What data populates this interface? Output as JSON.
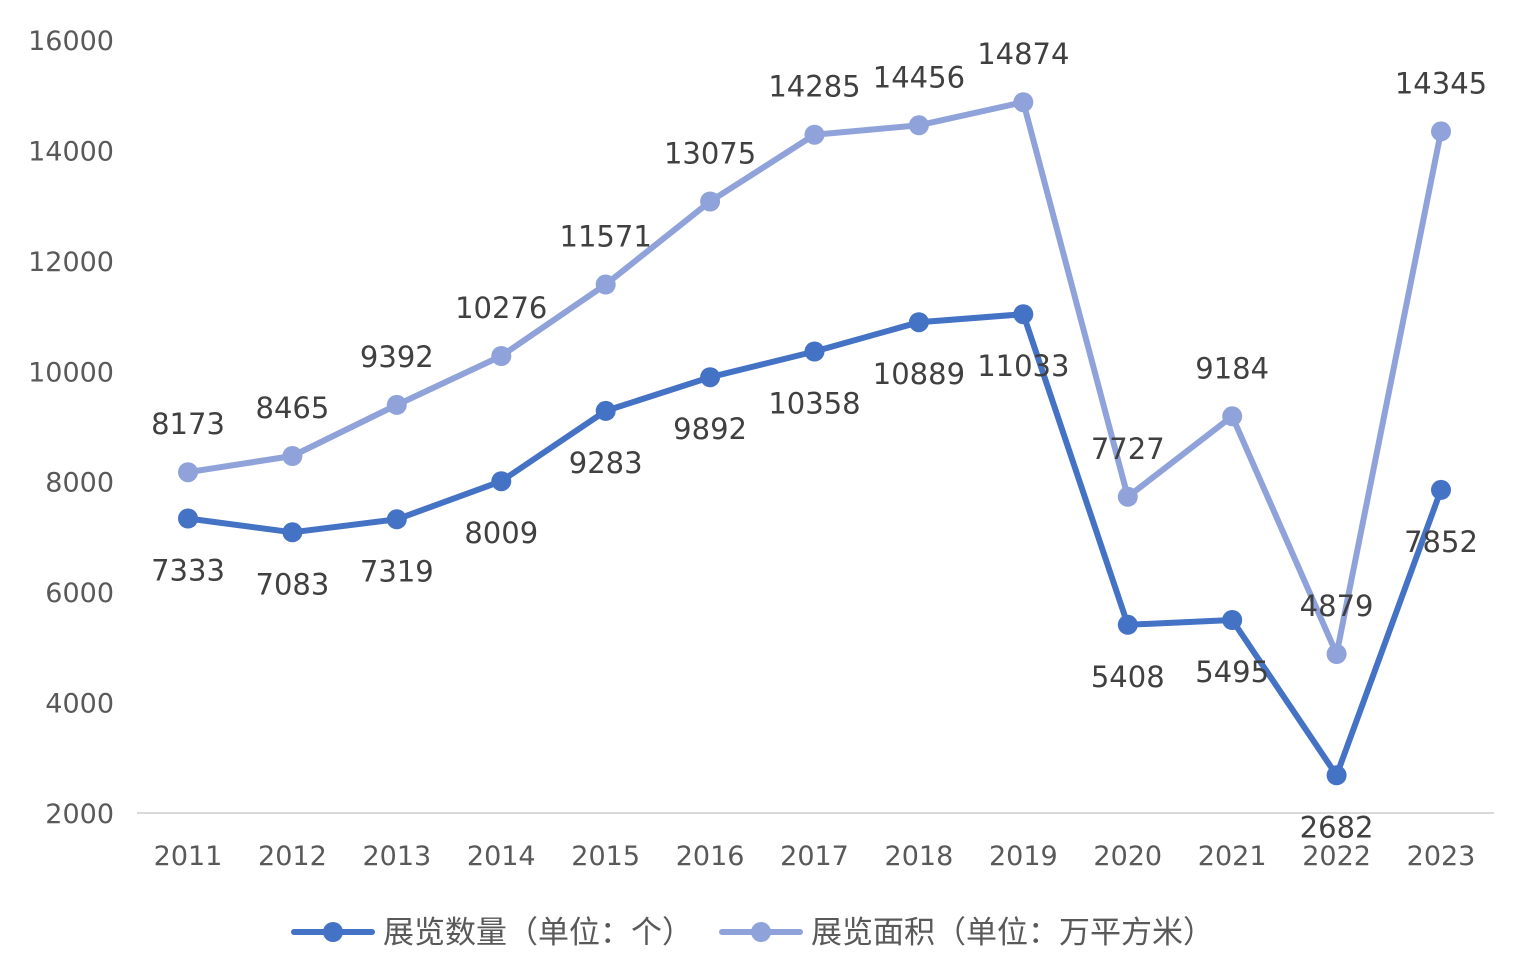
{
  "chart_data": {
    "type": "line",
    "title": "",
    "xlabel": "",
    "ylabel": "",
    "x": [
      "2011",
      "2012",
      "2013",
      "2014",
      "2015",
      "2016",
      "2017",
      "2018",
      "2019",
      "2020",
      "2021",
      "2022",
      "2023"
    ],
    "ylim": [
      2000,
      16000
    ],
    "yticks": [
      "2000",
      "4000",
      "6000",
      "8000",
      "10000",
      "12000",
      "14000",
      "16000"
    ],
    "grid": false,
    "legend_position": "bottom",
    "series": [
      {
        "name": "展览数量（单位：个）",
        "color": "#4472C4",
        "label_position": "below",
        "values": [
          7333,
          7083,
          7319,
          8009,
          9283,
          9892,
          10358,
          10889,
          11033,
          5408,
          5495,
          2682,
          7852
        ]
      },
      {
        "name": "展览面积（单位：万平方米）",
        "color": "#8FA2DA",
        "label_position": "above",
        "values": [
          8173,
          8465,
          9392,
          10276,
          11571,
          13075,
          14285,
          14456,
          14874,
          7727,
          9184,
          4879,
          14345
        ]
      }
    ]
  }
}
